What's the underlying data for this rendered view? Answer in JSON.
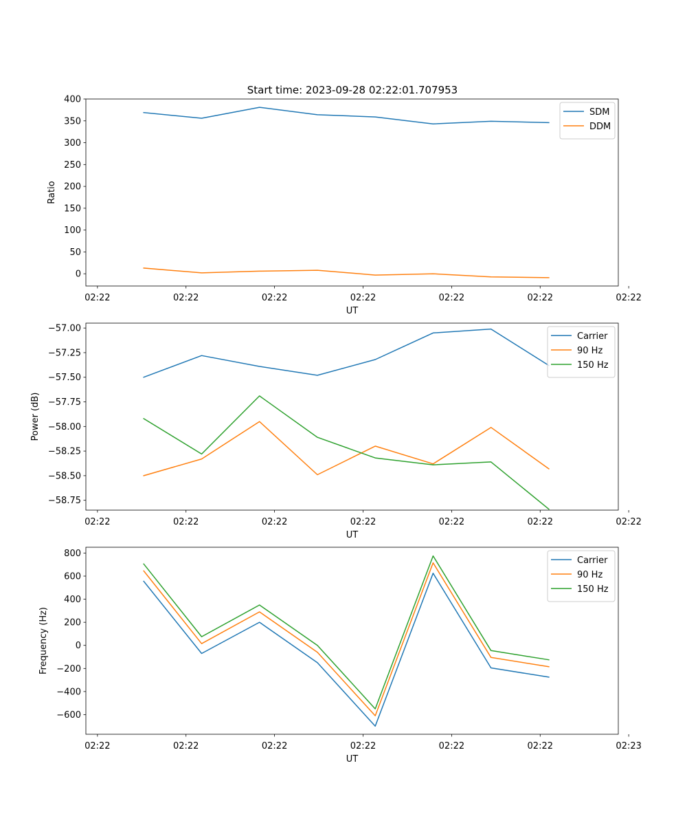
{
  "figure_title": "Start time: 2023-09-28 02:22:01.707953",
  "colors": {
    "c0": "#1f77b4",
    "c1": "#ff7f0e",
    "c2": "#2ca02c"
  },
  "chart_data": [
    {
      "type": "line",
      "title": "Start time: 2023-09-28 02:22:01.707953",
      "xlabel": "UT",
      "ylabel": "Ratio",
      "x": [
        1,
        2,
        3,
        4,
        5,
        6,
        7,
        8
      ],
      "xlim": [
        0,
        9.2
      ],
      "xticks": [
        0.2,
        1.73,
        3.26,
        4.79,
        6.32,
        7.85,
        9.38
      ],
      "xtick_labels": [
        "02:22",
        "02:22",
        "02:22",
        "02:22",
        "02:22",
        "02:22",
        "02:22"
      ],
      "ylim": [
        -28,
        400
      ],
      "yticks": [
        0,
        50,
        100,
        150,
        200,
        250,
        300,
        350,
        400
      ],
      "ytick_labels": [
        "0",
        "50",
        "100",
        "150",
        "200",
        "250",
        "300",
        "350",
        "400"
      ],
      "legend": "top-right",
      "series": [
        {
          "name": "SDM",
          "color": "#1f77b4",
          "values": [
            369,
            356,
            381,
            364,
            359,
            343,
            349,
            346
          ]
        },
        {
          "name": "DDM",
          "color": "#ff7f0e",
          "values": [
            13,
            2,
            6,
            8,
            -3,
            0,
            -7,
            -9
          ]
        }
      ]
    },
    {
      "type": "line",
      "xlabel": "UT",
      "ylabel": "Power (dB)",
      "x": [
        1,
        2,
        3,
        4,
        5,
        6,
        7,
        8
      ],
      "xlim": [
        0,
        9.2
      ],
      "xticks": [
        0.2,
        1.73,
        3.26,
        4.79,
        6.32,
        7.85,
        9.38
      ],
      "xtick_labels": [
        "02:22",
        "02:22",
        "02:22",
        "02:22",
        "02:22",
        "02:22",
        "02:22"
      ],
      "ylim": [
        -58.85,
        -56.95
      ],
      "yticks": [
        -57.0,
        -57.25,
        -57.5,
        -57.75,
        -58.0,
        -58.25,
        -58.5,
        -58.75
      ],
      "ytick_labels": [
        "−57.00",
        "−57.25",
        "−57.50",
        "−57.75",
        "−58.00",
        "−58.25",
        "−58.50",
        "−58.75"
      ],
      "legend": "top-right",
      "series": [
        {
          "name": "Carrier",
          "color": "#1f77b4",
          "values": [
            -57.5,
            -57.28,
            -57.39,
            -57.48,
            -57.32,
            -57.05,
            -57.01,
            -57.38
          ]
        },
        {
          "name": "90 Hz",
          "color": "#ff7f0e",
          "values": [
            -58.5,
            -58.33,
            -57.95,
            -58.49,
            -58.2,
            -58.38,
            -58.01,
            -58.43
          ]
        },
        {
          "name": "150 Hz",
          "color": "#2ca02c",
          "values": [
            -57.92,
            -58.28,
            -57.69,
            -58.11,
            -58.32,
            -58.39,
            -58.36,
            -58.84
          ]
        }
      ]
    },
    {
      "type": "line",
      "xlabel": "UT",
      "ylabel": "Frequency (Hz)",
      "x": [
        1,
        2,
        3,
        4,
        5,
        6,
        7,
        8
      ],
      "xlim": [
        0,
        9.2
      ],
      "xticks": [
        0.2,
        1.73,
        3.26,
        4.79,
        6.32,
        7.85,
        9.38
      ],
      "xtick_labels": [
        "02:22",
        "02:22",
        "02:22",
        "02:22",
        "02:22",
        "02:22",
        "02:23"
      ],
      "ylim": [
        -770,
        850
      ],
      "yticks": [
        800,
        600,
        400,
        200,
        0,
        -200,
        -400,
        -600
      ],
      "ytick_labels": [
        "800",
        "600",
        "400",
        "200",
        "0",
        "−200",
        "−400",
        "−600"
      ],
      "legend": "top-right",
      "series": [
        {
          "name": "Carrier",
          "color": "#1f77b4",
          "values": [
            555,
            -70,
            200,
            -150,
            -700,
            625,
            -195,
            -275
          ]
        },
        {
          "name": "90 Hz",
          "color": "#ff7f0e",
          "values": [
            645,
            15,
            290,
            -60,
            -610,
            715,
            -105,
            -185
          ]
        },
        {
          "name": "150 Hz",
          "color": "#2ca02c",
          "values": [
            705,
            75,
            350,
            0,
            -550,
            775,
            -45,
            -125
          ]
        }
      ]
    }
  ]
}
